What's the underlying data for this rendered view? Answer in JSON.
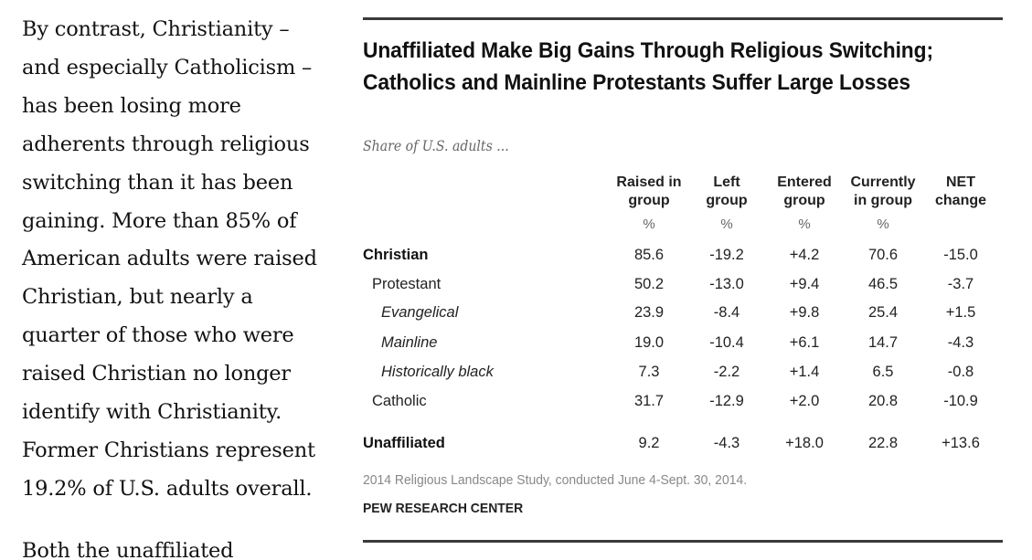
{
  "article": {
    "paragraph1_lines": [
      "By contrast, Christianity –",
      "and especially Catholicism –",
      "has been losing more",
      "adherents through religious",
      "switching than it has been",
      "gaining. More than 85% of",
      "American adults were raised",
      "Christian, but nearly a",
      "quarter of those who were",
      "raised Christian no longer",
      "identify with Christianity.",
      "Former Christians represent",
      "19.2% of U.S. adults overall."
    ],
    "paragraph2_partial": "Both the unaffiliated"
  },
  "figure": {
    "title": "Unaffiliated Make Big Gains Through Religious Switching; Catholics and Mainline Protestants Suffer Large Losses",
    "subtitle": "Share of U.S. adults ...",
    "note": "2014 Religious Landscape Study, conducted June 4-Sept. 30, 2014.",
    "source": "PEW RESEARCH CENTER"
  },
  "chart_data": {
    "type": "table",
    "title": "Unaffiliated Make Big Gains Through Religious Switching; Catholics and Mainline Protestants Suffer Large Losses",
    "subtitle": "Share of U.S. adults ...",
    "columns": [
      {
        "line1": "Raised in",
        "line2": "group",
        "unit": "%"
      },
      {
        "line1": "Left",
        "line2": "group",
        "unit": "%"
      },
      {
        "line1": "Entered",
        "line2": "group",
        "unit": "%"
      },
      {
        "line1": "Currently",
        "line2": "in group",
        "unit": "%"
      },
      {
        "line1": "NET",
        "line2": "change",
        "unit": ""
      }
    ],
    "rows": [
      {
        "label": "Christian",
        "style": "bold",
        "level": 0,
        "values": [
          "85.6",
          "-19.2",
          "+4.2",
          "70.6",
          "-15.0"
        ]
      },
      {
        "label": "Protestant",
        "style": "normal",
        "level": 1,
        "values": [
          "50.2",
          "-13.0",
          "+9.4",
          "46.5",
          "-3.7"
        ]
      },
      {
        "label": "Evangelical",
        "style": "italic",
        "level": 2,
        "values": [
          "23.9",
          "-8.4",
          "+9.8",
          "25.4",
          "+1.5"
        ]
      },
      {
        "label": "Mainline",
        "style": "italic",
        "level": 2,
        "values": [
          "19.0",
          "-10.4",
          "+6.1",
          "14.7",
          "-4.3"
        ]
      },
      {
        "label": "Historically black",
        "style": "italic",
        "level": 2,
        "values": [
          "7.3",
          "-2.2",
          "+1.4",
          "6.5",
          "-0.8"
        ]
      },
      {
        "label": "Catholic",
        "style": "normal",
        "level": 1,
        "values": [
          "31.7",
          "-12.9",
          "+2.0",
          "20.8",
          "-10.9"
        ]
      },
      {
        "label": "Unaffiliated",
        "style": "bold",
        "level": 0,
        "values": [
          "9.2",
          "-4.3",
          "+18.0",
          "22.8",
          "+13.6"
        ]
      }
    ],
    "note": "2014 Religious Landscape Study, conducted June 4-Sept. 30, 2014.",
    "source": "PEW RESEARCH CENTER"
  }
}
